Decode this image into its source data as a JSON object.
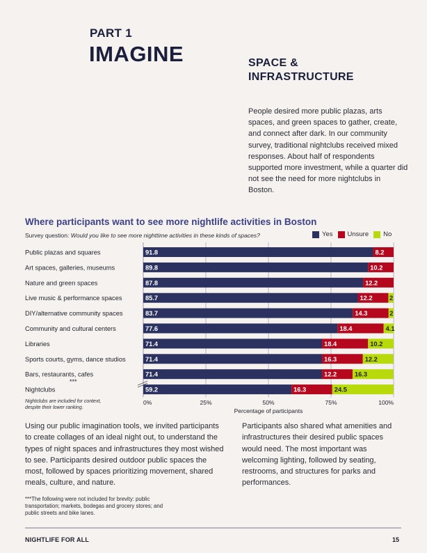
{
  "header": {
    "part": "PART 1",
    "title": "IMAGINE",
    "section": [
      "SPACE &",
      "INFRASTRUCTURE"
    ]
  },
  "intro": "People desired more public plazas, arts spaces, and green spaces to gather, create, and connect after dark. In our community survey, traditional nightclubs received mixed responses. About half of respondents supported more investment, while a quarter did not see the need for more nightclubs in Boston.",
  "chart_data": {
    "type": "bar",
    "orientation": "horizontal-stacked",
    "title": "Where participants want to see more nightlife activities in Boston",
    "subtitle_label": "Survey question:",
    "subtitle_question": "Would you like to see more nighttime activities in these kinds of spaces?",
    "xlabel": "Percentage of participants",
    "ylabel": "",
    "xlim": [
      0,
      100
    ],
    "xticks": [
      "0%",
      "25%",
      "50%",
      "75%",
      "100%"
    ],
    "xtick_values": [
      0,
      25,
      50,
      75,
      100
    ],
    "grid": true,
    "legend_position": "top-right",
    "categories": [
      "Public plazas and squares",
      "Art spaces, galleries, museums",
      "Nature and green spaces",
      "Live music & performance spaces",
      "DIY/alternative community spaces",
      "Community and cultural centers",
      "Libraries",
      "Sports courts, gyms, dance studios",
      "Bars, restaurants, cafes",
      "Nightclubs"
    ],
    "series": [
      {
        "name": "Yes",
        "color": "#2b3260",
        "values": [
          91.8,
          89.8,
          87.8,
          85.7,
          83.7,
          77.6,
          71.4,
          71.4,
          71.4,
          59.2
        ]
      },
      {
        "name": "Unsure",
        "color": "#b5081f",
        "values": [
          8.2,
          10.2,
          12.2,
          12.2,
          14.3,
          18.4,
          18.4,
          16.3,
          12.2,
          16.3
        ]
      },
      {
        "name": "No",
        "color": "#b8da0a",
        "values": [
          0,
          0,
          0,
          2,
          2,
          4.1,
          10.2,
          12.2,
          16.3,
          24.5
        ]
      }
    ],
    "labels": [
      [
        "91.8",
        "8.2",
        ""
      ],
      [
        "89.8",
        "10.2",
        ""
      ],
      [
        "87.8",
        "12.2",
        ""
      ],
      [
        "85.7",
        "12.2",
        "2"
      ],
      [
        "83.7",
        "14.3",
        "2"
      ],
      [
        "77.6",
        "18.4",
        "4.1"
      ],
      [
        "71.4",
        "18.4",
        "10.2"
      ],
      [
        "71.4",
        "16.3",
        "12.2"
      ],
      [
        "71.4",
        "12.2",
        "16.3"
      ],
      [
        "59.2",
        "16.3",
        "24.5"
      ]
    ],
    "annotations": [
      "***",
      "Nightclubs are included for context, despite their lower ranking."
    ]
  },
  "body_left": "Using our public imagination tools, we invited participants to create collages of an ideal night out, to understand the types of night spaces and infrastructures they most wished to see. Participants desired outdoor public spaces the most, followed by spaces prioritizing movement, shared meals, culture, and nature.",
  "body_right": "Participants also shared what amenities and infrastructures their desired public spaces would need. The most important was welcoming lighting, followed by seating, restrooms, and structures for parks and performances.",
  "brevity_note": "***The following were not included for brevity: public transportation; markets, bodegas and grocery stores; and public streets and bike lanes.",
  "footer": {
    "title": "NIGHTLIFE FOR ALL",
    "page": "15"
  }
}
